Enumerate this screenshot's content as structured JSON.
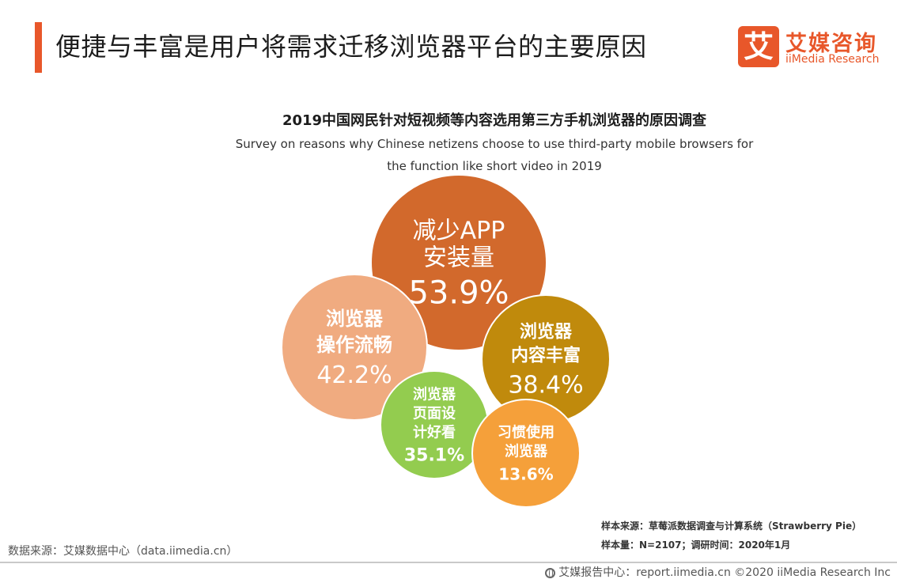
{
  "header": {
    "title": "便捷与丰富是用户将需求迁移浏览器平台的主要原因"
  },
  "logo": {
    "mark": "艾",
    "name_cn": "艾媒咨询",
    "name_en": "iiMedia Research"
  },
  "chart_data": {
    "type": "bubble",
    "title": "2019中国网民针对短视频等内容选用第三方手机浏览器的原因调查",
    "subtitle_line1": "Survey on reasons why Chinese netizens choose to use third-party mobile browsers for",
    "subtitle_line2": "the function like short video in 2019",
    "items": [
      {
        "label_lines": [
          "减少APP",
          "安装量"
        ],
        "value": 53.9,
        "display": "53.9%",
        "color": "#d2692c"
      },
      {
        "label_lines": [
          "浏览器",
          "操作流畅"
        ],
        "value": 42.2,
        "display": "42.2%",
        "color": "#f0ab80"
      },
      {
        "label_lines": [
          "浏览器",
          "内容丰富"
        ],
        "value": 38.4,
        "display": "38.4%",
        "color": "#c08a0c"
      },
      {
        "label_lines": [
          "浏览器",
          "页面设",
          "计好看"
        ],
        "value": 35.1,
        "display": "35.1%",
        "color": "#93cc4f"
      },
      {
        "label_lines": [
          "习惯使用",
          "浏览器"
        ],
        "value": 13.6,
        "display": "13.6%",
        "color": "#f5a03a"
      }
    ]
  },
  "notes": {
    "sample_source": "样本来源：草莓派数据调查与计算系统（Strawberry Pie）",
    "sample_size": "样本量：N=2107；调研时间：2020年1月",
    "data_source": "数据来源：艾媒数据中心（data.iimedia.cn）"
  },
  "footer": {
    "text": "艾媒报告中心：report.iimedia.cn ©2020 iiMedia Research Inc"
  }
}
